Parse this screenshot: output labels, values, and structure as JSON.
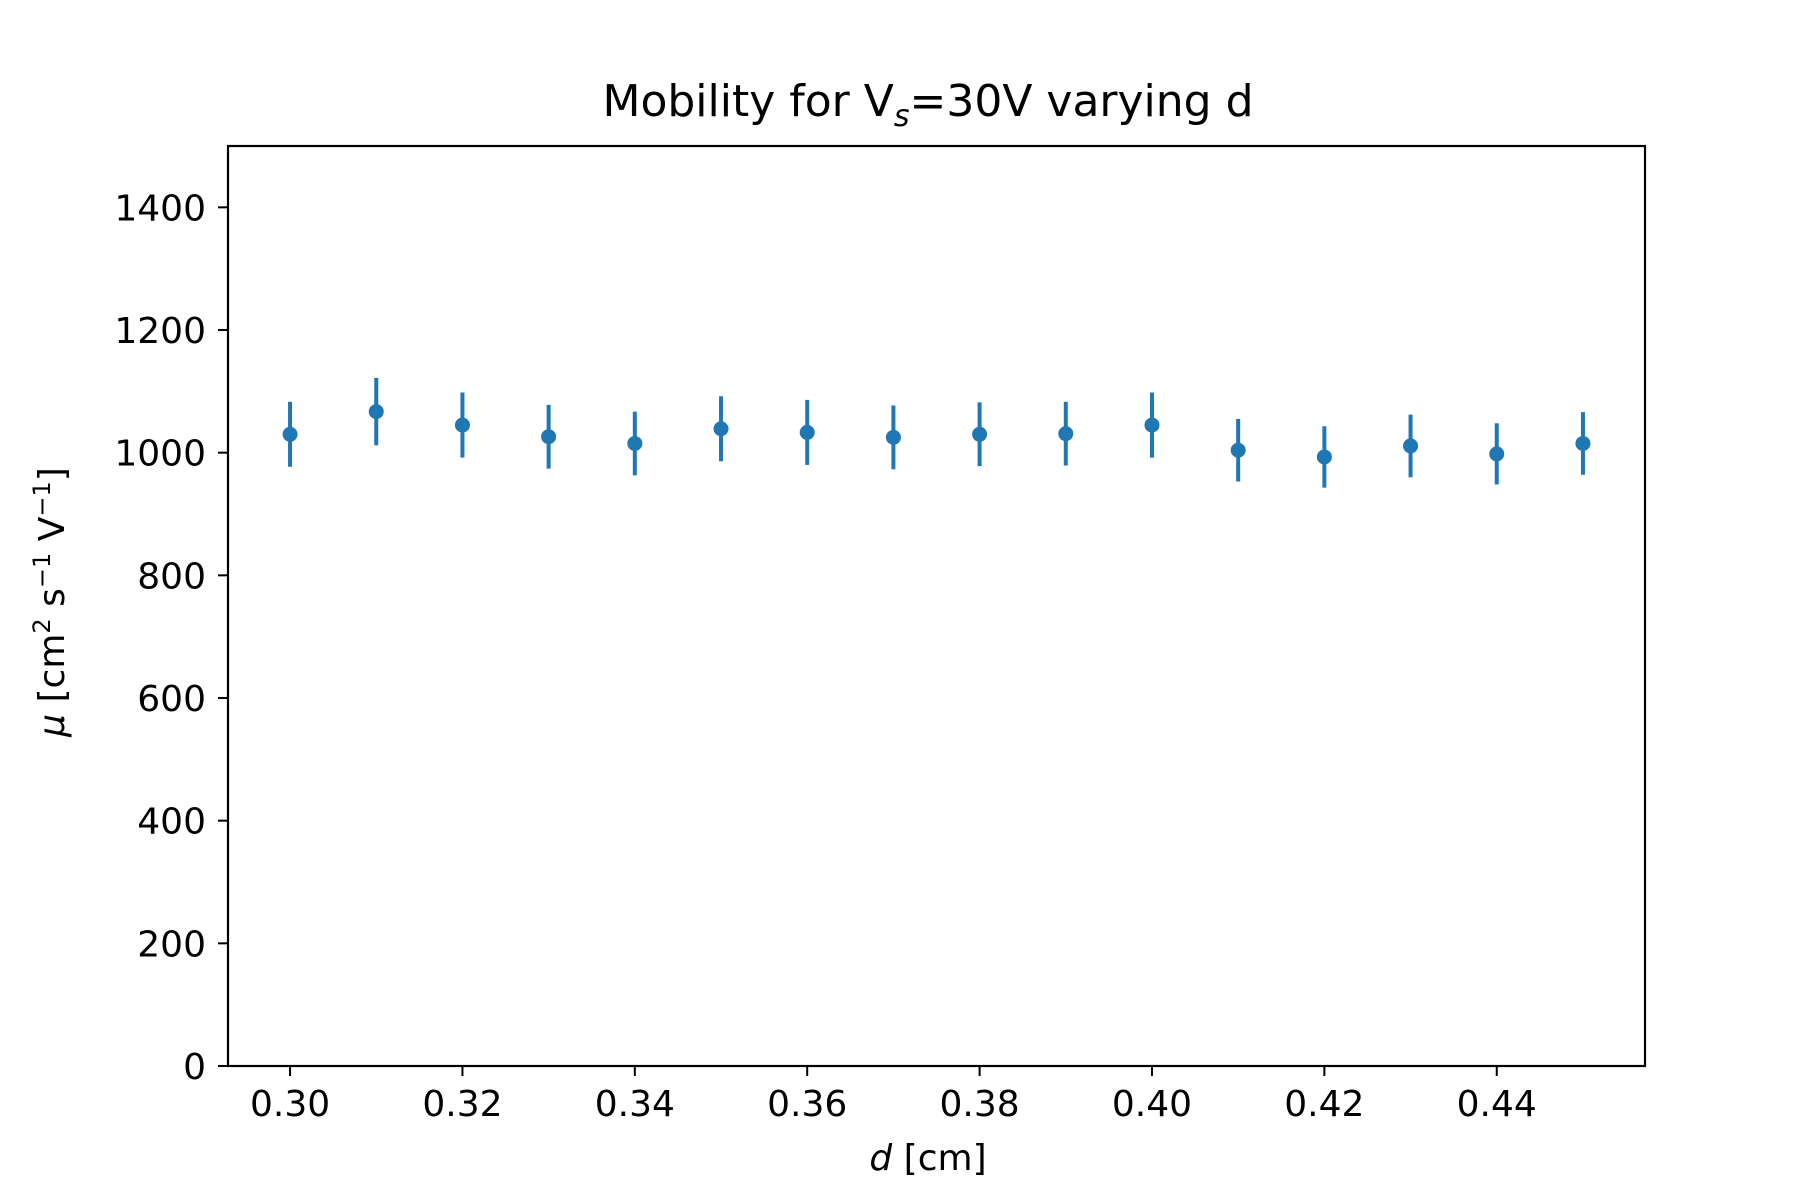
{
  "chart_data": {
    "type": "scatter",
    "title_main": "Mobility for V",
    "title_sub": "s",
    "title_tail": "=30V varying d",
    "xlabel_var": "d",
    "xlabel_unit": "[cm]",
    "ylabel_var": "μ",
    "ylabel_unit_a": "[cm",
    "ylabel_sup_a": "2",
    "ylabel_unit_b": "s",
    "ylabel_sup_b": "−1",
    "ylabel_unit_c": "V",
    "ylabel_sup_c": "−1",
    "ylabel_close": "]",
    "xlim": [
      0.2928,
      0.4572
    ],
    "ylim": [
      0,
      1500
    ],
    "xticks": [
      0.3,
      0.32,
      0.34,
      0.36,
      0.38,
      0.4,
      0.42,
      0.44
    ],
    "xtick_labels": [
      "0.30",
      "0.32",
      "0.34",
      "0.36",
      "0.38",
      "0.40",
      "0.42",
      "0.44"
    ],
    "yticks": [
      0,
      200,
      400,
      600,
      800,
      1000,
      1200,
      1400
    ],
    "ytick_labels": [
      "0",
      "200",
      "400",
      "600",
      "800",
      "1000",
      "1200",
      "1400"
    ],
    "grid": false,
    "color": "#1f77b4",
    "points": [
      {
        "x": 0.3,
        "y": 1030,
        "err": 53
      },
      {
        "x": 0.31,
        "y": 1067,
        "err": 55
      },
      {
        "x": 0.32,
        "y": 1045,
        "err": 53
      },
      {
        "x": 0.33,
        "y": 1026,
        "err": 52
      },
      {
        "x": 0.34,
        "y": 1015,
        "err": 52
      },
      {
        "x": 0.35,
        "y": 1039,
        "err": 53
      },
      {
        "x": 0.36,
        "y": 1033,
        "err": 53
      },
      {
        "x": 0.37,
        "y": 1025,
        "err": 52
      },
      {
        "x": 0.38,
        "y": 1030,
        "err": 52
      },
      {
        "x": 0.39,
        "y": 1031,
        "err": 52
      },
      {
        "x": 0.4,
        "y": 1045,
        "err": 53
      },
      {
        "x": 0.41,
        "y": 1004,
        "err": 51
      },
      {
        "x": 0.42,
        "y": 993,
        "err": 50
      },
      {
        "x": 0.43,
        "y": 1011,
        "err": 51
      },
      {
        "x": 0.44,
        "y": 998,
        "err": 50
      },
      {
        "x": 0.45,
        "y": 1015,
        "err": 51
      }
    ]
  }
}
